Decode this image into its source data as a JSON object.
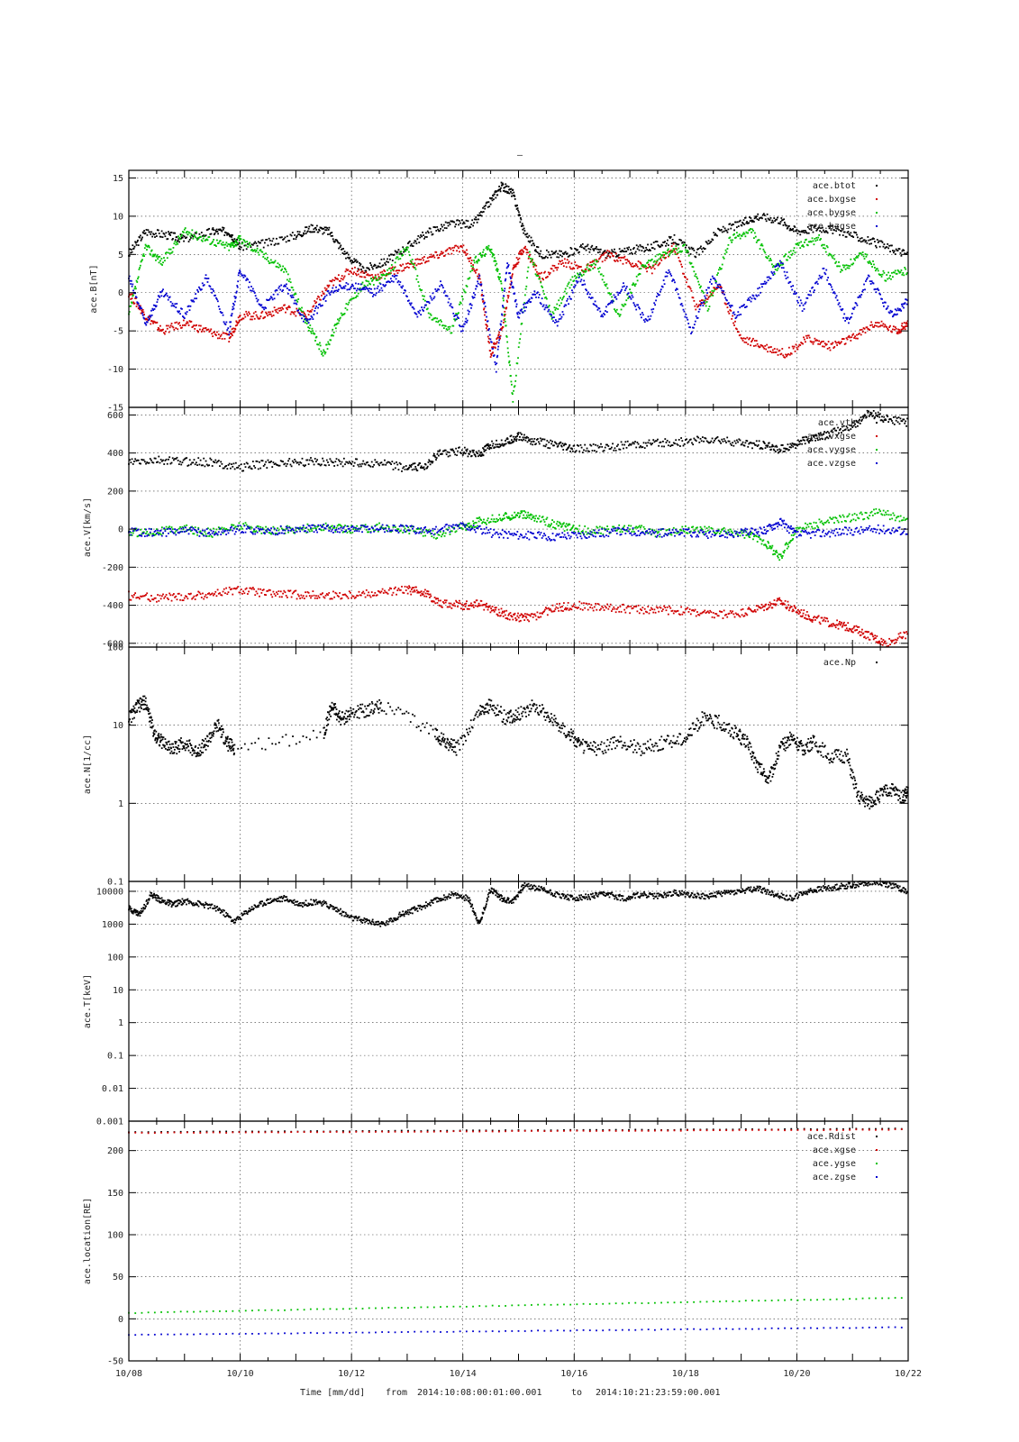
{
  "figure_title": "–",
  "footer": {
    "time_label": "Time [mm/dd]",
    "from_label": "from",
    "from_value": "2014:10:08:00:01:00.001",
    "to_label": "to",
    "to_value": "2014:10:21:23:59:00.001"
  },
  "colors": {
    "black": "#000000",
    "red": "#d00000",
    "green": "#00c000",
    "blue": "#0000d0"
  },
  "chart_data": [
    {
      "type": "scatter",
      "ylabel": "ace.B[nT]",
      "xlim": [
        "10/08",
        "10/22"
      ],
      "ylim": [
        -15,
        16
      ],
      "yticks": [
        -15,
        -10,
        -5,
        0,
        5,
        10,
        15
      ],
      "series": [
        {
          "name": "ace.btot",
          "color": "#000000",
          "x": [
            8,
            8.3,
            8.7,
            9,
            9.5,
            9.8,
            10,
            10.5,
            11,
            11.3,
            11.6,
            11.9,
            12.2,
            12.6,
            13,
            13.4,
            13.8,
            14.2,
            14.5,
            14.7,
            14.9,
            15.1,
            15.4,
            15.8,
            16.2,
            16.6,
            17,
            17.4,
            17.8,
            18.2,
            18.6,
            19,
            19.3,
            19.7,
            20,
            20.4,
            20.8,
            21.2,
            21.6,
            22
          ],
          "y": [
            5,
            8,
            7.5,
            7,
            8,
            8,
            6,
            6.5,
            7.5,
            8.5,
            8,
            5,
            3,
            4,
            6,
            8,
            9,
            9,
            12,
            14,
            13,
            8,
            5,
            5,
            6,
            5,
            5.5,
            6,
            7,
            5,
            8,
            9,
            10,
            9.5,
            8,
            8.5,
            8,
            7,
            6,
            5
          ]
        },
        {
          "name": "ace.bxgse",
          "color": "#d00000",
          "x": [
            8,
            8.3,
            8.6,
            9,
            9.4,
            9.8,
            10,
            10.4,
            10.8,
            11.2,
            11.6,
            12,
            12.4,
            12.8,
            13.2,
            13.6,
            14,
            14.3,
            14.5,
            14.7,
            14.9,
            15.1,
            15.4,
            15.8,
            16.2,
            16.6,
            17,
            17.4,
            17.8,
            18.2,
            18.6,
            19,
            19.4,
            19.8,
            20.2,
            20.6,
            21,
            21.4,
            21.8,
            22
          ],
          "y": [
            0,
            -3,
            -5,
            -4,
            -5,
            -6,
            -3,
            -3,
            -2,
            -3,
            1,
            3,
            2,
            3,
            4,
            5,
            6,
            2,
            -8,
            -5,
            3,
            6,
            2,
            4,
            3,
            5,
            4,
            3,
            6,
            -2,
            1,
            -6,
            -7,
            -8,
            -6,
            -7,
            -6,
            -4,
            -5,
            -4
          ]
        },
        {
          "name": "ace.bygse",
          "color": "#00c000",
          "x": [
            8,
            8.3,
            8.6,
            9,
            9.4,
            9.8,
            10,
            10.4,
            10.8,
            11.2,
            11.5,
            11.8,
            12.2,
            12.6,
            13,
            13.4,
            13.8,
            14.2,
            14.5,
            14.7,
            14.9,
            15.2,
            15.6,
            16,
            16.4,
            16.8,
            17.2,
            17.6,
            18,
            18.4,
            18.8,
            19.2,
            19.6,
            20,
            20.4,
            20.8,
            21.2,
            21.6,
            22
          ],
          "y": [
            -3,
            6,
            4,
            8,
            7,
            6,
            7,
            5,
            3,
            -4,
            -8,
            -3,
            1,
            2,
            6,
            -3,
            -5,
            4,
            6,
            1,
            -14,
            5,
            -3,
            2,
            4,
            -3,
            3,
            5,
            6,
            -2,
            7,
            8,
            3,
            6,
            7,
            3,
            5,
            2,
            3
          ]
        },
        {
          "name": "ace.bzgse",
          "color": "#0000d0",
          "x": [
            8,
            8.3,
            8.6,
            9,
            9.4,
            9.8,
            10,
            10.4,
            10.8,
            11.2,
            11.6,
            12,
            12.4,
            12.8,
            13.2,
            13.6,
            14,
            14.3,
            14.6,
            14.8,
            15,
            15.3,
            15.7,
            16.1,
            16.5,
            16.9,
            17.3,
            17.7,
            18.1,
            18.5,
            18.9,
            19.3,
            19.7,
            20.1,
            20.5,
            20.9,
            21.3,
            21.7,
            22
          ],
          "y": [
            2,
            -4,
            0,
            -3,
            2,
            -5,
            3,
            -2,
            1,
            -4,
            0,
            1,
            0,
            2,
            -3,
            1,
            -5,
            2,
            -10,
            4,
            -3,
            0,
            -4,
            2,
            -3,
            1,
            -4,
            3,
            -5,
            2,
            -3,
            0,
            4,
            -2,
            3,
            -4,
            2,
            -3,
            -1
          ]
        }
      ]
    },
    {
      "type": "scatter",
      "ylabel": "ace.V[km/s]",
      "xlim": [
        "10/08",
        "10/22"
      ],
      "ylim": [
        -620,
        640
      ],
      "yticks": [
        -600,
        -400,
        -200,
        0,
        200,
        400,
        600
      ],
      "series": [
        {
          "name": "ace.vth",
          "color": "#000000",
          "x": [
            8,
            8.5,
            9,
            9.5,
            10,
            10.5,
            11,
            11.5,
            12,
            12.5,
            13,
            13.3,
            13.6,
            14,
            14.3,
            14.5,
            14.8,
            15,
            15.3,
            15.7,
            16,
            16.5,
            17,
            17.5,
            18,
            18.5,
            19,
            19.4,
            19.7,
            20,
            20.3,
            20.6,
            21,
            21.3,
            21.6,
            22
          ],
          "y": [
            350,
            360,
            355,
            350,
            325,
            345,
            350,
            355,
            350,
            345,
            320,
            330,
            400,
            410,
            390,
            440,
            460,
            490,
            460,
            440,
            420,
            430,
            440,
            450,
            460,
            470,
            450,
            440,
            420,
            450,
            480,
            500,
            540,
            610,
            580,
            560
          ]
        },
        {
          "name": "ace.vxgse",
          "color": "#d00000",
          "x": [
            8,
            8.5,
            9,
            9.5,
            10,
            10.5,
            11,
            11.5,
            12,
            12.5,
            13,
            13.3,
            13.6,
            14,
            14.3,
            14.6,
            14.9,
            15.2,
            15.6,
            16,
            16.5,
            17,
            17.5,
            18,
            18.5,
            19,
            19.4,
            19.7,
            20,
            20.3,
            20.7,
            21,
            21.3,
            21.6,
            22
          ],
          "y": [
            -350,
            -360,
            -355,
            -340,
            -320,
            -340,
            -345,
            -350,
            -345,
            -335,
            -320,
            -330,
            -390,
            -400,
            -395,
            -430,
            -460,
            -470,
            -420,
            -400,
            -410,
            -420,
            -425,
            -430,
            -450,
            -440,
            -410,
            -380,
            -430,
            -470,
            -500,
            -520,
            -560,
            -600,
            -550
          ]
        },
        {
          "name": "ace.vygse",
          "color": "#00c000",
          "x": [
            8,
            8.5,
            9,
            9.5,
            10,
            10.5,
            11,
            11.5,
            12,
            12.5,
            13,
            13.5,
            14,
            14.3,
            14.7,
            15,
            15.3,
            15.7,
            16,
            16.5,
            17,
            17.5,
            18,
            18.5,
            19,
            19.4,
            19.7,
            20,
            20.5,
            21,
            21.5,
            22
          ],
          "y": [
            -20,
            -10,
            0,
            -20,
            20,
            -10,
            0,
            10,
            0,
            10,
            0,
            -30,
            10,
            40,
            60,
            80,
            60,
            20,
            0,
            -10,
            10,
            -20,
            0,
            -10,
            -20,
            -60,
            -150,
            0,
            40,
            60,
            90,
            40
          ]
        },
        {
          "name": "ace.vzgse",
          "color": "#0000d0",
          "x": [
            8,
            8.5,
            9,
            9.5,
            10,
            10.5,
            11,
            11.5,
            12,
            12.5,
            13,
            13.5,
            14,
            14.5,
            15,
            15.5,
            16,
            16.5,
            17,
            17.5,
            18,
            18.5,
            19,
            19.4,
            19.7,
            20,
            20.5,
            21,
            21.5,
            22
          ],
          "y": [
            -10,
            -20,
            -10,
            -20,
            0,
            -10,
            0,
            5,
            0,
            5,
            0,
            -10,
            20,
            -20,
            -30,
            -40,
            -30,
            -20,
            -10,
            -20,
            -20,
            -30,
            -20,
            -10,
            40,
            -30,
            -20,
            -10,
            0,
            -10
          ]
        }
      ]
    },
    {
      "type": "scatter",
      "ylabel": "ace.N[1/cc]",
      "yscale": "log",
      "xlim": [
        "10/08",
        "10/22"
      ],
      "ylim": [
        0.1,
        100
      ],
      "yticks": [
        0.1,
        1,
        10,
        100
      ],
      "ytick_labels": [
        "0.1",
        "1",
        "10",
        "100"
      ],
      "series": [
        {
          "name": "ace.Np",
          "color": "#000000",
          "x": [
            8,
            8.15,
            8.3,
            8.45,
            8.6,
            8.8,
            9,
            9.2,
            9.4,
            9.6,
            9.75,
            9.9,
            11.5,
            11.65,
            11.8,
            12,
            12.3,
            12.55,
            13.5,
            13.7,
            13.9,
            14.3,
            14.5,
            14.8,
            15,
            15.3,
            15.6,
            15.9,
            16.1,
            16.4,
            16.8,
            17.2,
            17.6,
            18,
            18.3,
            18.6,
            18.9,
            19.1,
            19.3,
            19.5,
            19.7,
            19.9,
            20.1,
            20.3,
            20.6,
            20.9,
            21.1,
            21.3,
            21.5,
            21.7,
            21.9,
            22
          ],
          "y": [
            12,
            17,
            20,
            8,
            6,
            5,
            6,
            4.5,
            6,
            10,
            6,
            5,
            8,
            18,
            12,
            14,
            16,
            18,
            8,
            6,
            5,
            15,
            18,
            12,
            14,
            18,
            12,
            8,
            5.5,
            5,
            6,
            5,
            6,
            7,
            12,
            11,
            8,
            6,
            3,
            2,
            5,
            7,
            5,
            6,
            4,
            4,
            1.2,
            1,
            1.3,
            1.5,
            1.2,
            1.4
          ]
        }
      ]
    },
    {
      "type": "scatter",
      "ylabel": "ace.T[keV]",
      "yscale": "log",
      "xlim": [
        "10/08",
        "10/22"
      ],
      "ylim": [
        0.001,
        20000
      ],
      "yticks": [
        0.001,
        0.01,
        0.1,
        1,
        10,
        100,
        1000,
        10000
      ],
      "ytick_labels": [
        "0.001",
        "0.01",
        "0.1",
        "1",
        "10",
        "100",
        "1000",
        "10000"
      ],
      "series": [
        {
          "name": "",
          "color": "#000000",
          "x": [
            8,
            8.2,
            8.4,
            8.6,
            8.8,
            9,
            9.3,
            9.6,
            9.9,
            10.2,
            10.5,
            10.8,
            11.1,
            11.4,
            11.7,
            12,
            12.3,
            12.6,
            12.9,
            13.2,
            13.5,
            13.8,
            14.1,
            14.3,
            14.5,
            14.7,
            14.9,
            15.1,
            15.4,
            15.7,
            16,
            16.3,
            16.6,
            16.9,
            17.2,
            17.5,
            17.8,
            18.1,
            18.4,
            18.7,
            19,
            19.3,
            19.6,
            19.9,
            20.2,
            20.5,
            20.8,
            21.1,
            21.4,
            21.7,
            22
          ],
          "y": [
            3000,
            2000,
            8000,
            5000,
            4000,
            5000,
            4000,
            3000,
            1200,
            3000,
            5000,
            6000,
            4000,
            5000,
            3000,
            1500,
            1200,
            1000,
            2000,
            3000,
            5000,
            8000,
            6000,
            1000,
            12000,
            6000,
            5000,
            15000,
            12000,
            8000,
            6000,
            7000,
            8000,
            6000,
            8000,
            7000,
            9000,
            8000,
            7000,
            9000,
            10000,
            12000,
            8000,
            6000,
            10000,
            12000,
            14000,
            16000,
            20000,
            15000,
            10000
          ]
        }
      ]
    },
    {
      "type": "scatter",
      "ylabel": "ace.location[RE]",
      "xlim": [
        "10/08",
        "10/22"
      ],
      "ylim": [
        -50,
        235
      ],
      "yticks": [
        -50,
        0,
        50,
        100,
        150,
        200
      ],
      "series": [
        {
          "name": "ace.Rdist",
          "color": "#000000",
          "x": [
            8,
            22
          ],
          "y": [
            222,
            226
          ]
        },
        {
          "name": "ace.xgse",
          "color": "#d00000",
          "x": [
            8,
            22
          ],
          "y": [
            221,
            225
          ]
        },
        {
          "name": "ace.ygse",
          "color": "#00c000",
          "x": [
            8,
            22
          ],
          "y": [
            7,
            25
          ]
        },
        {
          "name": "ace.zgse",
          "color": "#0000d0",
          "x": [
            8,
            22
          ],
          "y": [
            -19,
            -10
          ]
        }
      ]
    }
  ],
  "xticks": [
    {
      "day": 8,
      "label": "10/08"
    },
    {
      "day": 10,
      "label": "10/10"
    },
    {
      "day": 12,
      "label": "10/12"
    },
    {
      "day": 14,
      "label": "10/14"
    },
    {
      "day": 16,
      "label": "10/16"
    },
    {
      "day": 18,
      "label": "10/18"
    },
    {
      "day": 20,
      "label": "10/20"
    },
    {
      "day": 22,
      "label": "10/22"
    }
  ]
}
